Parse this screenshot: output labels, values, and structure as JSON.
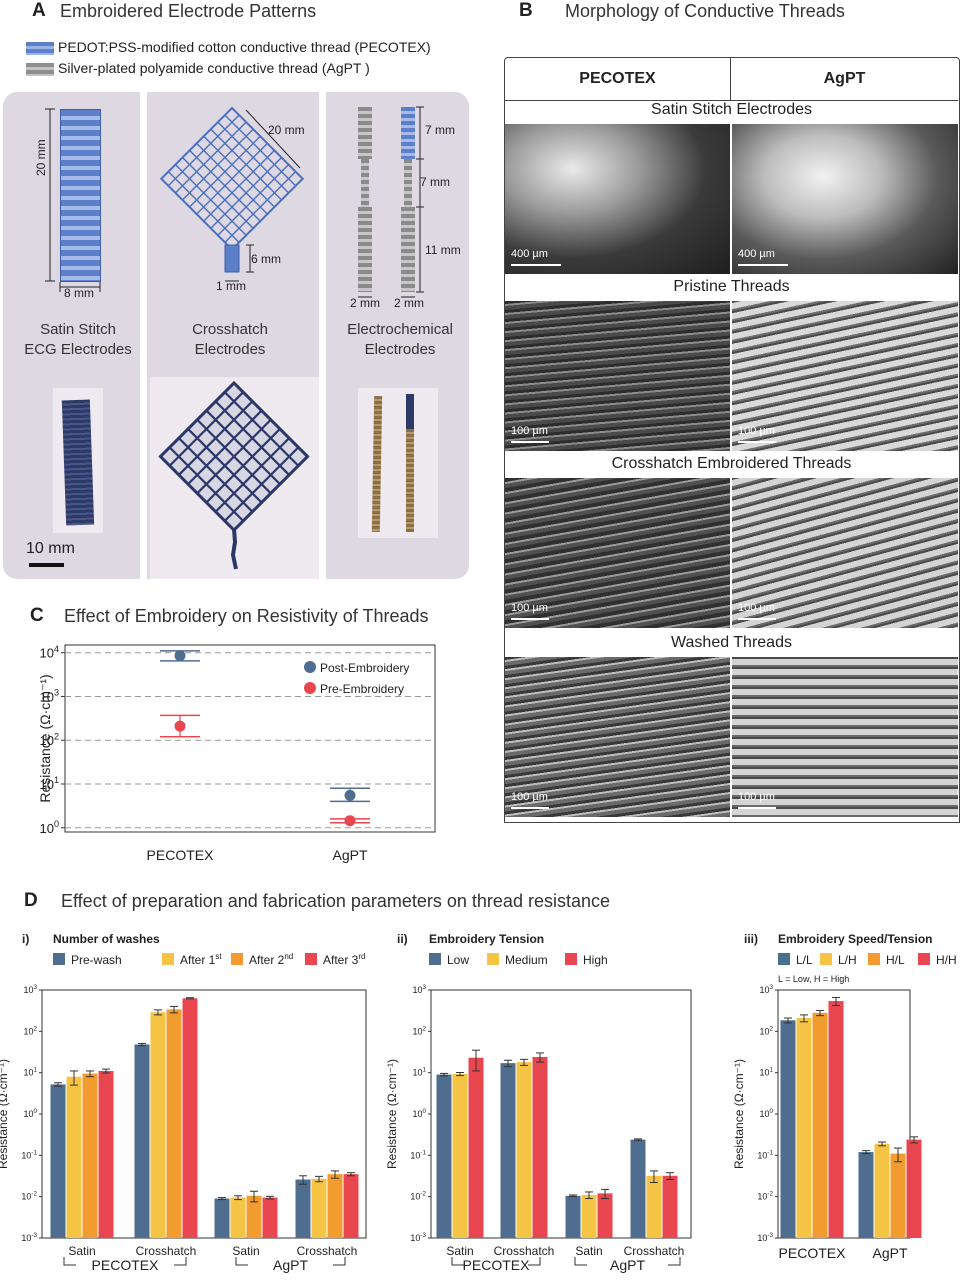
{
  "panelA": {
    "label": "A",
    "title": "Embroidered Electrode Patterns",
    "legend": [
      {
        "text": "PEDOT:PSS-modified cotton conductive thread (PECOTEX)",
        "color": "#5b7fc8"
      },
      {
        "text": "Silver-plated polyamide conductive thread (AgPT )",
        "color": "#8e8e8e"
      }
    ],
    "dims": {
      "satin_h": "20 mm",
      "satin_w": "8 mm",
      "cross_diag": "20 mm",
      "cross_stem_h": "6 mm",
      "cross_stem_w": "1 mm",
      "ec_top": "7 mm",
      "ec_mid": "7 mm",
      "ec_bottom": "11 mm",
      "ec_w1": "2 mm",
      "ec_w2": "2 mm"
    },
    "captions": {
      "satin_line1": "Satin Stitch",
      "satin_line2": "ECG Electrodes",
      "cross_line1": "Crosshatch",
      "cross_line2": "Electrodes",
      "ec_line1": "Electrochemical",
      "ec_line2": "Electrodes"
    },
    "scalebar": "10 mm"
  },
  "panelB": {
    "label": "B",
    "title": "Morphology of Conductive Threads",
    "col_left": "PECOTEX",
    "col_right": "AgPT",
    "rows": [
      {
        "title": "Satin Stitch Electrodes",
        "scale_left": "400 µm",
        "scale_right": "400 µm"
      },
      {
        "title": "Pristine Threads",
        "scale_left": "100 µm",
        "scale_right": "100 µm"
      },
      {
        "title": "Crosshatch Embroidered Threads",
        "scale_left": "100 µm",
        "scale_right": "100 µm"
      },
      {
        "title": "Washed Threads",
        "scale_left": "100 µm",
        "scale_right": "100 µm"
      }
    ]
  },
  "panelC": {
    "label": "C",
    "title": "Effect of Embroidery on Resistivity of Threads",
    "ylabel": "Resistance (Ω·cm⁻¹)"
  },
  "panelD": {
    "label": "D",
    "title": "Effect of preparation and fabrication parameters on thread resistance",
    "sub_i": {
      "num": "i)",
      "title": "Number of washes"
    },
    "sub_ii": {
      "num": "ii)",
      "title": "Embroidery Tension"
    },
    "sub_iii": {
      "num": "iii)",
      "title": "Embroidery Speed/Tension",
      "note": "L = Low, H = High"
    },
    "ylabel": "Resistance (Ω·cm⁻¹)"
  },
  "chart_data": [
    {
      "id": "C",
      "type": "scatter",
      "title": "Effect of Embroidery on Resistivity of Threads",
      "ylabel": "Resistance (Ω·cm⁻¹)",
      "yscale": "log",
      "ylim": [
        0.8,
        15000
      ],
      "ytick_exponents": [
        0,
        1,
        2,
        3,
        4
      ],
      "grid": "horizontal dashed",
      "legend_position": "top-right",
      "categories": [
        "PECOTEX",
        "AgPT"
      ],
      "series": [
        {
          "name": "Post-Embroidery",
          "color": "#4f6d8e",
          "values": [
            8500,
            5.5
          ],
          "err_low": [
            6500,
            4.0
          ],
          "err_high": [
            11000,
            8.0
          ]
        },
        {
          "name": "Pre-Embroidery",
          "color": "#e8474f",
          "values": [
            210,
            1.45
          ],
          "err_low": [
            120,
            1.3
          ],
          "err_high": [
            370,
            1.6
          ]
        }
      ]
    },
    {
      "id": "D-i",
      "type": "bar",
      "title": "Number of washes",
      "ylabel": "Resistance (Ω·cm⁻¹)",
      "yscale": "log",
      "ylim": [
        0.001,
        1000
      ],
      "categories": [
        "Satin",
        "Crosshatch",
        "Satin",
        "Crosshatch"
      ],
      "groups": [
        "PECOTEX",
        "AgPT"
      ],
      "legend_position": "top",
      "series": [
        {
          "name": "Pre-wash",
          "color": "#4f6d8e",
          "values": [
            5.2,
            48,
            0.009,
            0.026
          ],
          "err": [
            0.5,
            3,
            0.0005,
            0.006
          ]
        },
        {
          "name": "After 1st",
          "color": "#f6c445",
          "values": [
            8,
            290,
            0.0095,
            0.027
          ],
          "err": [
            3,
            40,
            0.001,
            0.004
          ]
        },
        {
          "name": "After 2nd",
          "color": "#f29b2e",
          "values": [
            9.5,
            340,
            0.0105,
            0.035
          ],
          "err": [
            1.5,
            60,
            0.003,
            0.007
          ]
        },
        {
          "name": "After 3rd",
          "color": "#e8474f",
          "values": [
            11,
            630,
            0.0095,
            0.035
          ],
          "err": [
            1.2,
            20,
            0.0007,
            0.003
          ]
        }
      ]
    },
    {
      "id": "D-ii",
      "type": "bar",
      "title": "Embroidery Tension",
      "ylabel": "Resistance (Ω·cm⁻¹)",
      "yscale": "log",
      "ylim": [
        0.001,
        1000
      ],
      "categories": [
        "Satin",
        "Crosshatch",
        "Satin",
        "Crosshatch"
      ],
      "groups": [
        "PECOTEX",
        "AgPT"
      ],
      "legend_position": "top",
      "series": [
        {
          "name": "Low",
          "color": "#4f6d8e",
          "values": [
            9,
            17,
            0.0105,
            0.24
          ],
          "err": [
            0.6,
            3,
            0.0005,
            0.01
          ]
        },
        {
          "name": "Medium",
          "color": "#f6c445",
          "values": [
            9.3,
            18,
            0.011,
            0.032
          ],
          "err": [
            0.8,
            3,
            0.002,
            0.01
          ]
        },
        {
          "name": "High",
          "color": "#e8474f",
          "values": [
            23,
            24,
            0.012,
            0.032
          ],
          "err": [
            12,
            6,
            0.003,
            0.006
          ]
        }
      ]
    },
    {
      "id": "D-iii",
      "type": "bar",
      "title": "Embroidery Speed/Tension",
      "ylabel": "Resistance (Ω·cm⁻¹)",
      "yscale": "log",
      "ylim": [
        0.001,
        1000
      ],
      "categories": [
        "PECOTEX",
        "AgPT"
      ],
      "legend_position": "top",
      "series": [
        {
          "name": "L/L",
          "color": "#4f6d8e",
          "values": [
            185,
            0.12
          ],
          "err": [
            25,
            0.01
          ]
        },
        {
          "name": "L/H",
          "color": "#f6c445",
          "values": [
            210,
            0.19
          ],
          "err": [
            40,
            0.02
          ]
        },
        {
          "name": "H/L",
          "color": "#f29b2e",
          "values": [
            280,
            0.11
          ],
          "err": [
            40,
            0.04
          ]
        },
        {
          "name": "H/H",
          "color": "#e8474f",
          "values": [
            540,
            0.24
          ],
          "err": [
            120,
            0.04
          ]
        }
      ]
    }
  ]
}
